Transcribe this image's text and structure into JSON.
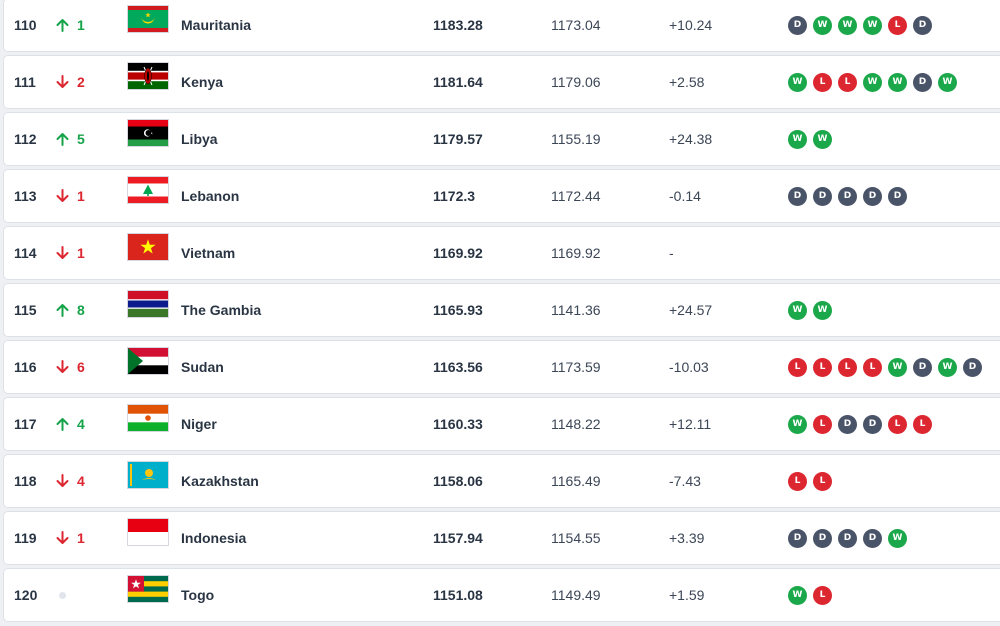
{
  "rankings": [
    {
      "rank": "110",
      "movement": {
        "direction": "up",
        "value": "1"
      },
      "flag": "mauritania-flag",
      "country": "Mauritania",
      "points": "1183.28",
      "previous_points": "1173.04",
      "change": "+10.24",
      "form": [
        "D",
        "W",
        "W",
        "W",
        "L",
        "D"
      ]
    },
    {
      "rank": "111",
      "movement": {
        "direction": "down",
        "value": "2"
      },
      "flag": "kenya-flag",
      "country": "Kenya",
      "points": "1181.64",
      "previous_points": "1179.06",
      "change": "+2.58",
      "form": [
        "W",
        "L",
        "L",
        "W",
        "W",
        "D",
        "W"
      ]
    },
    {
      "rank": "112",
      "movement": {
        "direction": "up",
        "value": "5"
      },
      "flag": "libya-flag",
      "country": "Libya",
      "points": "1179.57",
      "previous_points": "1155.19",
      "change": "+24.38",
      "form": [
        "W",
        "W"
      ]
    },
    {
      "rank": "113",
      "movement": {
        "direction": "down",
        "value": "1"
      },
      "flag": "lebanon-flag",
      "country": "Lebanon",
      "points": "1172.3",
      "previous_points": "1172.44",
      "change": "-0.14",
      "form": [
        "D",
        "D",
        "D",
        "D",
        "D"
      ]
    },
    {
      "rank": "114",
      "movement": {
        "direction": "down",
        "value": "1"
      },
      "flag": "vietnam-flag",
      "country": "Vietnam",
      "points": "1169.92",
      "previous_points": "1169.92",
      "change": "-",
      "form": []
    },
    {
      "rank": "115",
      "movement": {
        "direction": "up",
        "value": "8"
      },
      "flag": "gambia-flag",
      "country": "The Gambia",
      "points": "1165.93",
      "previous_points": "1141.36",
      "change": "+24.57",
      "form": [
        "W",
        "W"
      ]
    },
    {
      "rank": "116",
      "movement": {
        "direction": "down",
        "value": "6"
      },
      "flag": "sudan-flag",
      "country": "Sudan",
      "points": "1163.56",
      "previous_points": "1173.59",
      "change": "-10.03",
      "form": [
        "L",
        "L",
        "L",
        "L",
        "W",
        "D",
        "W",
        "D"
      ]
    },
    {
      "rank": "117",
      "movement": {
        "direction": "up",
        "value": "4"
      },
      "flag": "niger-flag",
      "country": "Niger",
      "points": "1160.33",
      "previous_points": "1148.22",
      "change": "+12.11",
      "form": [
        "W",
        "L",
        "D",
        "D",
        "L",
        "L"
      ]
    },
    {
      "rank": "118",
      "movement": {
        "direction": "down",
        "value": "4"
      },
      "flag": "kazakhstan-flag",
      "country": "Kazakhstan",
      "points": "1158.06",
      "previous_points": "1165.49",
      "change": "-7.43",
      "form": [
        "L",
        "L"
      ]
    },
    {
      "rank": "119",
      "movement": {
        "direction": "down",
        "value": "1"
      },
      "flag": "indonesia-flag",
      "country": "Indonesia",
      "points": "1157.94",
      "previous_points": "1154.55",
      "change": "+3.39",
      "form": [
        "D",
        "D",
        "D",
        "D",
        "W"
      ]
    },
    {
      "rank": "120",
      "movement": {
        "direction": "none",
        "value": ""
      },
      "flag": "togo-flag",
      "country": "Togo",
      "points": "1151.08",
      "previous_points": "1149.49",
      "change": "+1.59",
      "form": [
        "W",
        "L"
      ]
    }
  ],
  "colors": {
    "win": "#1ba84a",
    "loss": "#dc2630",
    "draw": "#4a5468",
    "up": "#16a34a",
    "down": "#dc2630"
  }
}
